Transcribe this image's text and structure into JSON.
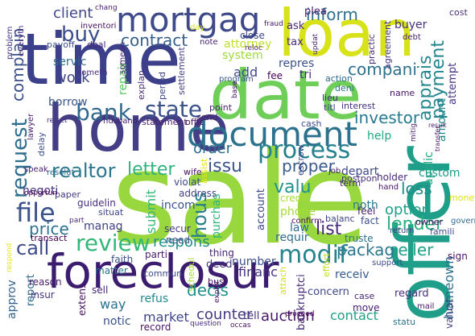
{
  "words": [
    {
      "text": "sale",
      "color": "#98d83e"
    },
    {
      "text": "time",
      "color": "#3c3f89"
    },
    {
      "text": "home",
      "color": "#433e85"
    },
    {
      "text": "offer",
      "color": "#1f9e89"
    },
    {
      "text": "loan",
      "color": "#d8e219"
    },
    {
      "text": "date",
      "color": "#6ece58"
    },
    {
      "text": "foreclosur",
      "color": "#3b1c6e"
    },
    {
      "text": "document",
      "color": "#2c728e"
    },
    {
      "text": "mortgag",
      "color": "#3e4a89"
    },
    {
      "text": "process",
      "color": "#26818e"
    },
    {
      "text": "bank",
      "color": "#31688e"
    },
    {
      "text": "state",
      "color": "#3b528b"
    },
    {
      "text": "review",
      "color": "#35b779"
    },
    {
      "text": "file",
      "color": "#3b528b"
    },
    {
      "text": "request",
      "color": "#2e6e8e"
    },
    {
      "text": "realtor",
      "color": "#2a778e"
    },
    {
      "text": "letter",
      "color": "#2db27d"
    },
    {
      "text": "call",
      "color": "#3e4c8a"
    },
    {
      "text": "price",
      "color": "#2c738e"
    },
    {
      "text": "compani",
      "color": "#2d718e"
    },
    {
      "text": "payment",
      "color": "#24868e"
    },
    {
      "text": "inform",
      "color": "#2d708e"
    },
    {
      "text": "modif",
      "color": "#25848e"
    },
    {
      "text": "hous",
      "color": "#277f8e"
    },
    {
      "text": "buy",
      "color": "#3d4d8a"
    },
    {
      "text": "contract",
      "color": "#35608d"
    },
    {
      "text": "work",
      "color": "#414487"
    },
    {
      "text": "complain",
      "color": "#3c508b"
    },
    {
      "text": "apprais",
      "color": "#23898e"
    },
    {
      "text": "investor",
      "color": "#297a8e"
    },
    {
      "text": "lender",
      "color": "#2ab07f"
    },
    {
      "text": "option",
      "color": "#1fa187"
    },
    {
      "text": "seller",
      "color": "#1fa188"
    },
    {
      "text": "packag",
      "color": "#2a788e"
    },
    {
      "text": "respons",
      "color": "#20928c"
    },
    {
      "text": "valu",
      "color": "#20938c"
    },
    {
      "text": "proper",
      "color": "#375b8d"
    },
    {
      "text": "issu",
      "color": "#3a548c"
    },
    {
      "text": "order",
      "color": "#2e6d8e"
    },
    {
      "text": "list",
      "color": "#472d7b"
    },
    {
      "text": "loss",
      "color": "#228c8d"
    },
    {
      "text": "client",
      "color": "#3f4889"
    },
    {
      "text": "borrow",
      "color": "#39568c"
    },
    {
      "text": "submit",
      "color": "#35b779"
    },
    {
      "text": "purchas",
      "color": "#2fb47c"
    },
    {
      "text": "homeown",
      "color": "#2d708e"
    },
    {
      "text": "decis",
      "color": "#21918c"
    },
    {
      "text": "counter",
      "color": "#443983"
    },
    {
      "text": "auction",
      "color": "#48186a"
    },
    {
      "text": "market",
      "color": "#404588"
    },
    {
      "text": "financ",
      "color": "#46337f"
    },
    {
      "text": "way",
      "color": "#2c728e"
    },
    {
      "text": "contact",
      "color": "#1fa088"
    },
    {
      "text": "servic",
      "color": "#2e6e8e"
    },
    {
      "text": "repair",
      "color": "#5ec962"
    },
    {
      "text": "system",
      "color": "#9fda3a"
    },
    {
      "text": "attorney",
      "color": "#bddf26"
    },
    {
      "text": "repres",
      "color": "#3b528b"
    },
    {
      "text": "add",
      "color": "#3e4989"
    },
    {
      "text": "fee",
      "color": "#440154"
    },
    {
      "text": "tri",
      "color": "#472c7a"
    },
    {
      "text": "ask",
      "color": "#482576"
    },
    {
      "text": "plea",
      "color": "#481a6c"
    },
    {
      "text": "buyer",
      "color": "#46317e"
    },
    {
      "text": "close",
      "color": "#3f4788"
    },
    {
      "text": "tax",
      "color": "#472d7b"
    },
    {
      "text": "depart",
      "color": "#3e4a89"
    },
    {
      "text": "applic",
      "color": "#22a884"
    },
    {
      "text": "amount",
      "color": "#23898e"
    },
    {
      "text": "attempt",
      "color": "#453581"
    },
    {
      "text": "help",
      "color": "#22a785"
    },
    {
      "text": "custom",
      "color": "#1e9b8a"
    },
    {
      "text": "noth",
      "color": "#2a788e"
    },
    {
      "text": "law",
      "color": "#2e6e8e"
    },
    {
      "text": "phone",
      "color": "#a5db36"
    },
    {
      "text": "credit",
      "color": "#a8db34"
    },
    {
      "text": "requir",
      "color": "#2f6c8e"
    },
    {
      "text": "incom",
      "color": "#3a548c"
    },
    {
      "text": "negoti",
      "color": "#46307e"
    },
    {
      "text": "manag",
      "color": "#424186"
    },
    {
      "text": "account",
      "color": "#3f4788"
    },
    {
      "text": "deed",
      "color": "#453882"
    },
    {
      "text": "number",
      "color": "#3c508b"
    },
    {
      "text": "notic",
      "color": "#3b518b"
    },
    {
      "text": "refus",
      "color": "#24878e"
    },
    {
      "text": "report",
      "color": "#31668e"
    },
    {
      "text": "approv",
      "color": "#34618d"
    },
    {
      "text": "receiv",
      "color": "#365c8d"
    },
    {
      "text": "bankruptci",
      "color": "#472878"
    },
    {
      "text": "concern",
      "color": "#3f4889"
    },
    {
      "text": "move",
      "color": "#482173"
    },
    {
      "text": "regard",
      "color": "#46327e"
    },
    {
      "text": "valuat",
      "color": "#433d84"
    },
    {
      "text": "tell",
      "color": "#46327e"
    },
    {
      "text": "record",
      "color": "#471365"
    },
    {
      "text": "sell",
      "color": "#482677"
    },
    {
      "text": "extens",
      "color": "#471063"
    },
    {
      "text": "insur",
      "color": "#463480"
    },
    {
      "text": "reason",
      "color": "#481c6e"
    },
    {
      "text": "matter",
      "color": "#2c728e"
    },
    {
      "text": "transact",
      "color": "#440154"
    },
    {
      "text": "guidelin",
      "color": "#472f7d"
    },
    {
      "text": "situat",
      "color": "#404588"
    },
    {
      "text": "paper",
      "color": "#443983"
    },
    {
      "text": "violat",
      "color": "#3e4989"
    },
    {
      "text": "address",
      "color": "#414487"
    },
    {
      "text": "secur",
      "color": "#453882"
    },
    {
      "text": "need",
      "color": "#3e4c8a"
    },
    {
      "text": "thing",
      "color": "#482576"
    },
    {
      "text": "parti",
      "color": "#481d6f"
    },
    {
      "text": "faith",
      "color": "#3b528b"
    },
    {
      "text": "commun",
      "color": "#3d4e8a"
    },
    {
      "text": "busi",
      "color": "#471365"
    },
    {
      "text": "schedul",
      "color": "#aadc32"
    },
    {
      "text": "effort",
      "color": "#c2df23"
    },
    {
      "text": "attach",
      "color": "#d5e21a"
    },
    {
      "text": "case",
      "color": "#482475"
    },
    {
      "text": "statu",
      "color": "#2b758e"
    },
    {
      "text": "mail",
      "color": "#48186a"
    },
    {
      "text": "sign",
      "color": "#481467"
    },
    {
      "text": "owner",
      "color": "#471063"
    },
    {
      "text": "fact",
      "color": "#3b528b"
    },
    {
      "text": "feel",
      "color": "#482071"
    },
    {
      "text": "truste",
      "color": "#2c728e"
    },
    {
      "text": "holder",
      "color": "#482878"
    },
    {
      "text": "hand",
      "color": "#481668"
    },
    {
      "text": "money",
      "color": "#dde318"
    },
    {
      "text": "famili",
      "color": "#3d4e8a"
    },
    {
      "text": "govern",
      "color": "#31688e"
    },
    {
      "text": "return",
      "color": "#443a83"
    },
    {
      "text": "support",
      "color": "#3e4a89"
    },
    {
      "text": "balanc",
      "color": "#3f4788"
    },
    {
      "text": "confirm",
      "color": "#471063"
    },
    {
      "text": "term",
      "color": "#482475"
    },
    {
      "text": "job",
      "color": "#481c6e"
    },
    {
      "text": "postpon",
      "color": "#46307e"
    },
    {
      "text": "escrow",
      "color": "#3e4a89"
    },
    {
      "text": "assist",
      "color": "#e5e419"
    },
    {
      "text": "wife",
      "color": "#471063"
    },
    {
      "text": "delay",
      "color": "#3c4f8a"
    },
    {
      "text": "speak",
      "color": "#482173"
    },
    {
      "text": "resolut",
      "color": "#31688e"
    },
    {
      "text": "opportun",
      "color": "#440154"
    },
    {
      "text": "part",
      "color": "#472a7a"
    },
    {
      "text": "lawyer",
      "color": "#481f70"
    },
    {
      "text": "reject",
      "color": "#45337d"
    },
    {
      "text": "husband",
      "color": "#482071"
    },
    {
      "text": "statement",
      "color": "#481c6e"
    },
    {
      "text": "offic",
      "color": "#471164"
    },
    {
      "text": "cash",
      "color": "#3e4c8a"
    },
    {
      "text": "send",
      "color": "#481f70"
    },
    {
      "text": "point",
      "color": "#482475"
    },
    {
      "text": "period",
      "color": "#3f4788"
    },
    {
      "text": "explan",
      "color": "#472d7b"
    },
    {
      "text": "someth",
      "color": "#472f7d"
    },
    {
      "text": "everyth",
      "color": "#46307e"
    },
    {
      "text": "problem",
      "color": "#443983"
    },
    {
      "text": "payoff",
      "color": "#3e4c8a"
    },
    {
      "text": "deal",
      "color": "#472878"
    },
    {
      "text": "someon",
      "color": "#482677"
    },
    {
      "text": "settlement",
      "color": "#433e85"
    },
    {
      "text": "program",
      "color": "#3b528b"
    },
    {
      "text": "base",
      "color": "#481467"
    },
    {
      "text": "note",
      "color": "#482173"
    },
    {
      "text": "reloc",
      "color": "#481c6e"
    },
    {
      "text": "fraud",
      "color": "#481467"
    },
    {
      "text": "updat",
      "color": "#482878"
    },
    {
      "text": "practic",
      "color": "#472d7b"
    },
    {
      "text": "agreement",
      "color": "#46327e"
    },
    {
      "text": "debt",
      "color": "#482475"
    },
    {
      "text": "cost",
      "color": "#472f7d"
    },
    {
      "text": "chang",
      "color": "#481c6e"
    },
    {
      "text": "inventori",
      "color": "#471063"
    },
    {
      "text": "action",
      "color": "#31688e"
    },
    {
      "text": "deni",
      "color": "#2c728e"
    },
    {
      "text": "lieu",
      "color": "#472878"
    },
    {
      "text": "titl",
      "color": "#433e85"
    },
    {
      "text": "interest",
      "color": "#46327e"
    },
    {
      "text": "name",
      "color": "#481668"
    },
    {
      "text": "result",
      "color": "#481f70"
    },
    {
      "text": "transfer",
      "color": "#481467"
    },
    {
      "text": "mitig",
      "color": "#482071"
    },
    {
      "text": "proceed",
      "color": "#440154"
    },
    {
      "text": "question",
      "color": "#472a7a"
    },
    {
      "text": "occas",
      "color": "#471164"
    },
    {
      "text": "explor",
      "color": "#481769"
    },
    {
      "text": "respond",
      "color": "#e7e419"
    },
    {
      "text": "day",
      "color": "#dde318"
    },
    {
      "text": "respond",
      "color": "#e7e419"
    },
    {
      "text": "short",
      "color": "#e0e31a"
    }
  ]
}
